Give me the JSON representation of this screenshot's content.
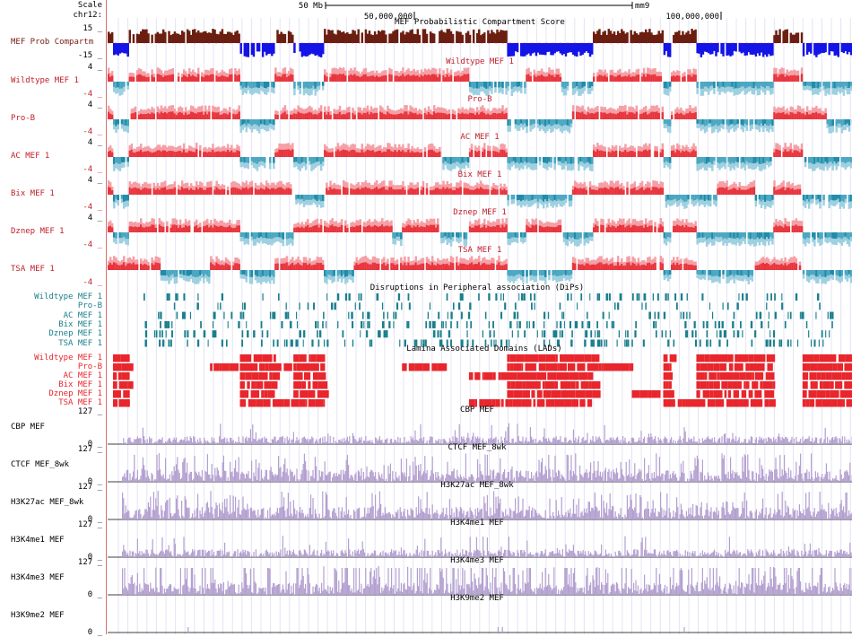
{
  "header": {
    "scale_label": "Scale",
    "chrom_label": "chr12:",
    "scale_bar_text": "50 Mb",
    "assembly": "mm9",
    "coord_50m": "50,000,000",
    "coord_100m": "100,000,000"
  },
  "tracks": [
    {
      "id": "compartment",
      "title": "MEF Probabilistic Compartment Score",
      "label": "MEF Prob Compartm",
      "ymax": "15",
      "ymin": "-15",
      "pos_color": "#6b1f10",
      "neg_color": "#1414e6"
    },
    {
      "id": "wt",
      "title": "Wildtype MEF 1",
      "label": "Wildtype MEF 1",
      "ymax": "4",
      "ymin": "-4",
      "pos_color": "#e8343c",
      "neg_color": "#4aa6c0"
    },
    {
      "id": "prob",
      "title": "Pro-B",
      "label": "Pro-B",
      "ymax": "4",
      "ymin": "-4",
      "pos_color": "#e8343c",
      "neg_color": "#4aa6c0"
    },
    {
      "id": "ac",
      "title": "AC MEF 1",
      "label": "AC MEF 1",
      "ymax": "4",
      "ymin": "-4",
      "pos_color": "#e8343c",
      "neg_color": "#4aa6c0"
    },
    {
      "id": "bix",
      "title": "Bix MEF 1",
      "label": "Bix MEF 1",
      "ymax": "4",
      "ymin": "-4",
      "pos_color": "#e8343c",
      "neg_color": "#4aa6c0"
    },
    {
      "id": "dznep",
      "title": "Dznep MEF 1",
      "label": "Dznep MEF 1",
      "ymax": "4",
      "ymin": "-4",
      "pos_color": "#e8343c",
      "neg_color": "#4aa6c0"
    },
    {
      "id": "tsa",
      "title": "TSA MEF 1",
      "label": "TSA MEF 1",
      "ymax": "",
      "ymin": "-4",
      "pos_color": "#e8343c",
      "neg_color": "#4aa6c0"
    }
  ],
  "dips": {
    "title": "Disruptions in Peripheral association (DiPs)",
    "color": "#1a7f8c",
    "rows": [
      "Wildtype MEF 1",
      "Pro-B",
      "AC MEF 1",
      "Bix MEF 1",
      "Dznep MEF 1",
      "TSA MEF 1"
    ]
  },
  "lads": {
    "title": "Lamina Associated Domains (LADs)",
    "color": "#e8262c",
    "rows": [
      "Wildtype MEF 1",
      "Pro-B",
      "AC MEF 1",
      "Bix MEF 1",
      "Dznep MEF 1",
      "TSA MEF 1"
    ]
  },
  "signals": [
    {
      "id": "cbp",
      "title": "CBP MEF",
      "label": "CBP MEF",
      "ymax": "127",
      "ymin": "0",
      "color": "#b4a0d0"
    },
    {
      "id": "ctcf",
      "title": "CTCF MEF_8wk",
      "label": "CTCF MEF_8wk",
      "ymax": "127",
      "ymin": "0",
      "color": "#b4a0d0"
    },
    {
      "id": "k27ac",
      "title": "H3K27ac MEF_8wk",
      "label": "H3K27ac MEF_8wk",
      "ymax": "127",
      "ymin": "0",
      "color": "#b4a0d0"
    },
    {
      "id": "k4me1",
      "title": "H3K4me1 MEF",
      "label": "H3K4me1 MEF",
      "ymax": "127",
      "ymin": "0",
      "color": "#b4a0d0"
    },
    {
      "id": "k4me3",
      "title": "H3K4me3 MEF",
      "label": "H3K4me3 MEF",
      "ymax": "127",
      "ymin": "0",
      "color": "#b4a0d0"
    },
    {
      "id": "k9me2",
      "title": "H3K9me2 MEF",
      "label": "H3K9me2 MEF",
      "ymax": "",
      "ymin": "0",
      "color": "#b4a0d0"
    }
  ]
}
